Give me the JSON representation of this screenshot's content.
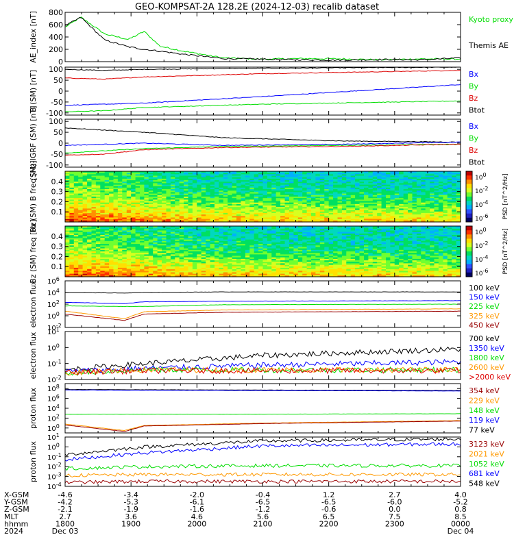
{
  "title": "GEO-KOMPSAT-2A 128.2E (2024-12-03) recalib dataset",
  "colors": {
    "black": "#000000",
    "blue": "#0000ff",
    "red": "#dd0000",
    "green": "#00dd00",
    "orange": "#ff9900",
    "darkred": "#990000"
  },
  "chart_data": [
    {
      "type": "line",
      "id": "ae",
      "ylabel": "AE_index [nT]",
      "yticks": [
        "800",
        "600",
        "400",
        "200",
        "0"
      ],
      "ylim": [
        0,
        800
      ],
      "legend": [
        {
          "name": "Kyoto proxy AE",
          "color": "green"
        },
        {
          "name": "Themis AE",
          "color": "black"
        }
      ],
      "series": [
        {
          "name": "Kyoto proxy AE",
          "color": "green",
          "x": [
            0,
            0.04,
            0.1,
            0.16,
            0.2,
            0.24,
            0.3,
            0.4,
            0.5,
            0.6,
            0.7,
            0.8,
            0.9,
            1
          ],
          "y": [
            560,
            720,
            450,
            360,
            490,
            250,
            170,
            60,
            40,
            50,
            45,
            30,
            45,
            40
          ]
        },
        {
          "name": "Themis AE",
          "color": "black",
          "x": [
            0,
            0.04,
            0.1,
            0.16,
            0.2,
            0.24,
            0.3,
            0.4,
            0.5,
            0.6,
            0.7,
            0.8,
            0.9,
            1
          ],
          "y": [
            580,
            720,
            350,
            240,
            200,
            170,
            120,
            50,
            40,
            30,
            25,
            35,
            30,
            60
          ]
        }
      ]
    },
    {
      "type": "line",
      "id": "bsm",
      "ylabel": "B (SM) [nT]",
      "yticks": [
        "100",
        "50",
        "0",
        "-50",
        "-100"
      ],
      "ylim": [
        -110,
        110
      ],
      "legend": [
        {
          "name": "Bx",
          "color": "blue"
        },
        {
          "name": "By",
          "color": "green"
        },
        {
          "name": "Bz",
          "color": "red"
        },
        {
          "name": "Btot",
          "color": "black"
        }
      ],
      "series": [
        {
          "name": "Btot",
          "color": "black",
          "x": [
            0,
            0.1,
            0.2,
            0.5,
            1
          ],
          "y": [
            100,
            95,
            100,
            105,
            110
          ]
        },
        {
          "name": "Bz",
          "color": "red",
          "x": [
            0,
            0.1,
            0.2,
            0.5,
            1
          ],
          "y": [
            60,
            55,
            65,
            80,
            95
          ]
        },
        {
          "name": "Bx",
          "color": "blue",
          "x": [
            0,
            0.1,
            0.2,
            0.5,
            1
          ],
          "y": [
            -65,
            -60,
            -55,
            -25,
            30
          ]
        },
        {
          "name": "By",
          "color": "green",
          "x": [
            0,
            0.1,
            0.2,
            0.5,
            1
          ],
          "y": [
            -95,
            -90,
            -75,
            -60,
            -45
          ]
        }
      ]
    },
    {
      "type": "line",
      "id": "bigrf",
      "ylabel": "(SM)-IGRF (SM) [nT]",
      "yticks": [
        "100",
        "50",
        "0",
        "-50",
        "-100"
      ],
      "ylim": [
        -110,
        110
      ],
      "legend": [
        {
          "name": "Bx",
          "color": "blue"
        },
        {
          "name": "By",
          "color": "green"
        },
        {
          "name": "Bz",
          "color": "red"
        },
        {
          "name": "Btot",
          "color": "black"
        }
      ],
      "series": [
        {
          "name": "Btot",
          "color": "black",
          "x": [
            0,
            0.1,
            0.2,
            0.4,
            0.7,
            1
          ],
          "y": [
            70,
            60,
            50,
            25,
            10,
            5
          ]
        },
        {
          "name": "Bx",
          "color": "blue",
          "x": [
            0,
            0.1,
            0.2,
            0.4,
            0.7,
            1
          ],
          "y": [
            -10,
            -5,
            0,
            -10,
            -5,
            5
          ]
        },
        {
          "name": "By",
          "color": "green",
          "x": [
            0,
            0.1,
            0.2,
            0.4,
            0.7,
            1
          ],
          "y": [
            -45,
            -35,
            -25,
            -15,
            -10,
            -5
          ]
        },
        {
          "name": "Bz",
          "color": "red",
          "x": [
            0,
            0.1,
            0.2,
            0.4,
            0.7,
            1
          ],
          "y": [
            -55,
            -50,
            -30,
            -20,
            -15,
            -5
          ]
        }
      ]
    },
    {
      "type": "heatmap",
      "id": "bxspec",
      "ylabel": "Bx (SM) B freq [Hz]",
      "yticks": [
        "0.4",
        "0.3",
        "0.2",
        "0.1"
      ],
      "ylim": [
        0,
        0.5
      ],
      "cbar_label": "PSD [nT^2/Hz]",
      "cbar_ticks": [
        "10^0",
        "10^-2",
        "10^-4",
        "10^-6"
      ]
    },
    {
      "type": "heatmap",
      "id": "bzspec",
      "ylabel": "Bz (SM) freq [Hz]",
      "yticks": [
        "0.4",
        "0.3",
        "0.2",
        "0.1"
      ],
      "ylim": [
        0,
        0.5
      ],
      "cbar_label": "PSD [nT^2/Hz]",
      "cbar_ticks": [
        "10^0",
        "10^-2",
        "10^-4",
        "10^-6"
      ]
    },
    {
      "type": "line",
      "id": "elow",
      "ylabel": "electron flux",
      "log": true,
      "yticks": [
        "10^6",
        "10^4",
        "10^2",
        "10^0",
        "10^-2"
      ],
      "ylim": [
        -2,
        6
      ],
      "legend": [
        {
          "name": "100 keV",
          "color": "black"
        },
        {
          "name": "150 keV",
          "color": "blue"
        },
        {
          "name": "225 keV",
          "color": "green"
        },
        {
          "name": "325 keV",
          "color": "orange"
        },
        {
          "name": "450 keV",
          "color": "darkred"
        }
      ],
      "series": [
        {
          "name": "100 keV",
          "color": "black",
          "x": [
            0,
            0.15,
            0.2,
            0.4,
            1
          ],
          "y": [
            4.0,
            3.9,
            4.0,
            4.1,
            4.1
          ]
        },
        {
          "name": "150 keV",
          "color": "blue",
          "x": [
            0,
            0.15,
            0.2,
            0.4,
            1
          ],
          "y": [
            2.3,
            2.1,
            2.4,
            2.5,
            2.6
          ]
        },
        {
          "name": "225 keV",
          "color": "green",
          "x": [
            0,
            0.15,
            0.2,
            0.4,
            1
          ],
          "y": [
            1.7,
            1.6,
            1.6,
            1.9,
            2.0
          ]
        },
        {
          "name": "325 keV",
          "color": "orange",
          "x": [
            0,
            0.15,
            0.2,
            0.4,
            1
          ],
          "y": [
            0.8,
            -0.5,
            0.7,
            1.0,
            1.2
          ]
        },
        {
          "name": "450 keV",
          "color": "darkred",
          "x": [
            0,
            0.15,
            0.2,
            0.4,
            1
          ],
          "y": [
            0.3,
            -0.8,
            0.3,
            0.6,
            0.8
          ]
        }
      ]
    },
    {
      "type": "line",
      "id": "ehigh",
      "ylabel": "electron flux",
      "log": true,
      "yticks": [
        "10^1",
        "10^0",
        "10^-1",
        "10^-2"
      ],
      "ylim": [
        -2,
        1
      ],
      "legend": [
        {
          "name": "700 keV",
          "color": "black"
        },
        {
          "name": "1350 keV",
          "color": "blue"
        },
        {
          "name": "1800 keV",
          "color": "green"
        },
        {
          "name": "2600 keV",
          "color": "orange"
        },
        {
          "name": ">2000 keV",
          "color": "red"
        }
      ],
      "series": [
        {
          "name": "700 keV",
          "color": "black",
          "x": [
            0,
            0.2,
            0.5,
            1
          ],
          "y": [
            -1.4,
            -1.0,
            -0.5,
            -0.1
          ]
        },
        {
          "name": "1350 keV",
          "color": "blue",
          "x": [
            0,
            0.2,
            0.5,
            1
          ],
          "y": [
            -1.5,
            -1.3,
            -1.1,
            -0.9
          ]
        },
        {
          "name": "1800 keV",
          "color": "green",
          "x": [
            0,
            0.2,
            0.5,
            1
          ],
          "y": [
            -1.6,
            -1.4,
            -1.4,
            -1.4
          ]
        },
        {
          "name": "2600 keV",
          "color": "orange",
          "x": [
            0,
            0.2,
            0.5,
            1
          ],
          "y": [
            -1.6,
            -1.4,
            -1.4,
            -1.4
          ]
        },
        {
          "name": ">2000 keV",
          "color": "red",
          "x": [
            0,
            0.2,
            0.5,
            1
          ],
          "y": [
            -1.55,
            -1.45,
            -1.45,
            -1.45
          ]
        }
      ]
    },
    {
      "type": "line",
      "id": "plow",
      "ylabel": "proton flux",
      "log": true,
      "yticks": [
        "10^8",
        "10^6",
        "10^4",
        "10^2",
        "10^0"
      ],
      "ylim": [
        -1,
        9
      ],
      "legend": [
        {
          "name": "354 keV",
          "color": "darkred"
        },
        {
          "name": "229 keV",
          "color": "orange"
        },
        {
          "name": "148 keV",
          "color": "green"
        },
        {
          "name": "119 keV",
          "color": "blue"
        },
        {
          "name": "77 keV",
          "color": "black"
        }
      ],
      "series": [
        {
          "name": "77 keV",
          "color": "black",
          "x": [
            0,
            0.5,
            1
          ],
          "y": [
            7.8,
            7.7,
            7.6
          ]
        },
        {
          "name": "119 keV",
          "color": "blue",
          "x": [
            0,
            0.5,
            1
          ],
          "y": [
            7.7,
            7.6,
            7.5
          ]
        },
        {
          "name": "148 keV",
          "color": "green",
          "x": [
            0,
            0.5,
            1
          ],
          "y": [
            2.8,
            2.8,
            2.9
          ]
        },
        {
          "name": "229 keV",
          "color": "orange",
          "x": [
            0,
            0.15,
            0.2,
            0.5,
            1
          ],
          "y": [
            0.8,
            -0.5,
            0.5,
            1.0,
            1.5
          ]
        },
        {
          "name": "354 keV",
          "color": "darkred",
          "x": [
            0,
            0.15,
            0.2,
            0.5,
            1
          ],
          "y": [
            0.6,
            -0.7,
            0.4,
            0.9,
            1.4
          ]
        }
      ]
    },
    {
      "type": "line",
      "id": "phigh",
      "ylabel": "proton flux",
      "log": true,
      "yticks": [
        "10^1",
        "10^0",
        "10^-1",
        "10^-2",
        "10^-3",
        "10^-4"
      ],
      "ylim": [
        -4,
        1
      ],
      "legend": [
        {
          "name": "3123 keV",
          "color": "darkred"
        },
        {
          "name": "2021 keV",
          "color": "orange"
        },
        {
          "name": "1052 keV",
          "color": "green"
        },
        {
          "name": "681 keV",
          "color": "blue"
        },
        {
          "name": "548 keV",
          "color": "black"
        }
      ],
      "series": [
        {
          "name": "548 keV",
          "color": "black",
          "x": [
            0,
            0.2,
            0.5,
            1
          ],
          "y": [
            -0.8,
            0.0,
            0.6,
            0.8
          ]
        },
        {
          "name": "681 keV",
          "color": "blue",
          "x": [
            0,
            0.2,
            0.5,
            1
          ],
          "y": [
            -1.3,
            -0.6,
            0.1,
            0.3
          ]
        },
        {
          "name": "1052 keV",
          "color": "green",
          "x": [
            0,
            0.2,
            0.5,
            1
          ],
          "y": [
            -2.2,
            -2.0,
            -1.9,
            -1.9
          ]
        },
        {
          "name": "2021 keV",
          "color": "orange",
          "x": [
            0,
            0.2,
            0.5,
            1
          ],
          "y": [
            -2.9,
            -2.8,
            -2.8,
            -2.8
          ]
        },
        {
          "name": "3123 keV",
          "color": "darkred",
          "x": [
            0,
            0.2,
            0.5,
            1
          ],
          "y": [
            -3.6,
            -3.5,
            -3.5,
            -3.5
          ]
        }
      ]
    }
  ],
  "xaxis": {
    "row_labels": [
      "X-GSM",
      "Y-GSM",
      "Z-GSM",
      "MLT",
      "hhmm",
      "2024"
    ],
    "ticks": [
      {
        "x": 0.0,
        "vals": [
          "-4.6",
          "-4.2",
          "-2.1",
          "2.7",
          "1800",
          "Dec 03"
        ]
      },
      {
        "x": 0.1667,
        "vals": [
          "-3.4",
          "-5.3",
          "-1.9",
          "3.6",
          "1900",
          ""
        ]
      },
      {
        "x": 0.3333,
        "vals": [
          "-2.0",
          "-6.1",
          "-1.6",
          "4.6",
          "2000",
          ""
        ]
      },
      {
        "x": 0.5,
        "vals": [
          "-0.4",
          "-6.5",
          "-1.2",
          "5.6",
          "2100",
          ""
        ]
      },
      {
        "x": 0.6667,
        "vals": [
          "1.2",
          "-6.5",
          "-0.6",
          "6.5",
          "2200",
          ""
        ]
      },
      {
        "x": 0.8333,
        "vals": [
          "2.7",
          "-6.0",
          "0.0",
          "7.5",
          "2300",
          ""
        ]
      },
      {
        "x": 1.0,
        "vals": [
          "4.0",
          "-5.2",
          "0.8",
          "8.5",
          "0000",
          "Dec 04"
        ]
      }
    ]
  }
}
